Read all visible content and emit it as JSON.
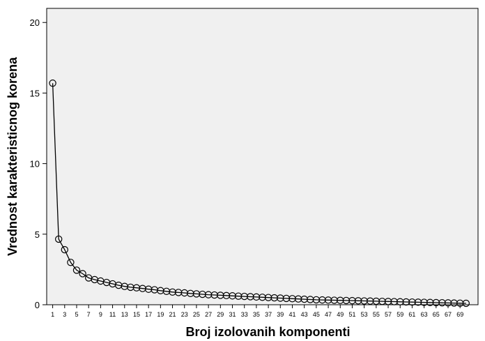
{
  "chart_data": {
    "type": "line",
    "title": "",
    "xlabel": "Broj izolovanih komponenti",
    "ylabel": "Vrednost karakteristicnog korena",
    "xlim": [
      0,
      72
    ],
    "ylim": [
      0,
      21
    ],
    "y_ticks": [
      "0",
      "5",
      "10",
      "15",
      "20"
    ],
    "x_ticks": [
      "1",
      "3",
      "5",
      "7",
      "9",
      "11",
      "13",
      "15",
      "17",
      "19",
      "21",
      "23",
      "25",
      "27",
      "29",
      "31",
      "33",
      "35",
      "37",
      "39",
      "41",
      "43",
      "45",
      "47",
      "49",
      "51",
      "53",
      "55",
      "57",
      "59",
      "61",
      "63",
      "65",
      "67",
      "69"
    ],
    "grid": false,
    "background": "#f0f0f0",
    "line_color": "#000000",
    "marker": "open-circle",
    "x": [
      1,
      2,
      3,
      4,
      5,
      6,
      7,
      8,
      9,
      10,
      11,
      12,
      13,
      14,
      15,
      16,
      17,
      18,
      19,
      20,
      21,
      22,
      23,
      24,
      25,
      26,
      27,
      28,
      29,
      30,
      31,
      32,
      33,
      34,
      35,
      36,
      37,
      38,
      39,
      40,
      41,
      42,
      43,
      44,
      45,
      46,
      47,
      48,
      49,
      50,
      51,
      52,
      53,
      54,
      55,
      56,
      57,
      58,
      59,
      60,
      61,
      62,
      63,
      64,
      65,
      66,
      67,
      68,
      69,
      70
    ],
    "values": [
      15.7,
      4.65,
      3.9,
      3.0,
      2.45,
      2.2,
      1.9,
      1.78,
      1.68,
      1.58,
      1.48,
      1.38,
      1.3,
      1.24,
      1.2,
      1.15,
      1.1,
      1.06,
      1.0,
      0.95,
      0.9,
      0.87,
      0.84,
      0.8,
      0.77,
      0.74,
      0.71,
      0.69,
      0.67,
      0.65,
      0.63,
      0.61,
      0.59,
      0.57,
      0.55,
      0.53,
      0.51,
      0.49,
      0.47,
      0.45,
      0.43,
      0.41,
      0.39,
      0.37,
      0.35,
      0.34,
      0.33,
      0.32,
      0.31,
      0.3,
      0.29,
      0.28,
      0.27,
      0.26,
      0.25,
      0.24,
      0.23,
      0.22,
      0.21,
      0.2,
      0.19,
      0.18,
      0.17,
      0.16,
      0.15,
      0.14,
      0.13,
      0.12,
      0.11,
      0.1
    ]
  }
}
